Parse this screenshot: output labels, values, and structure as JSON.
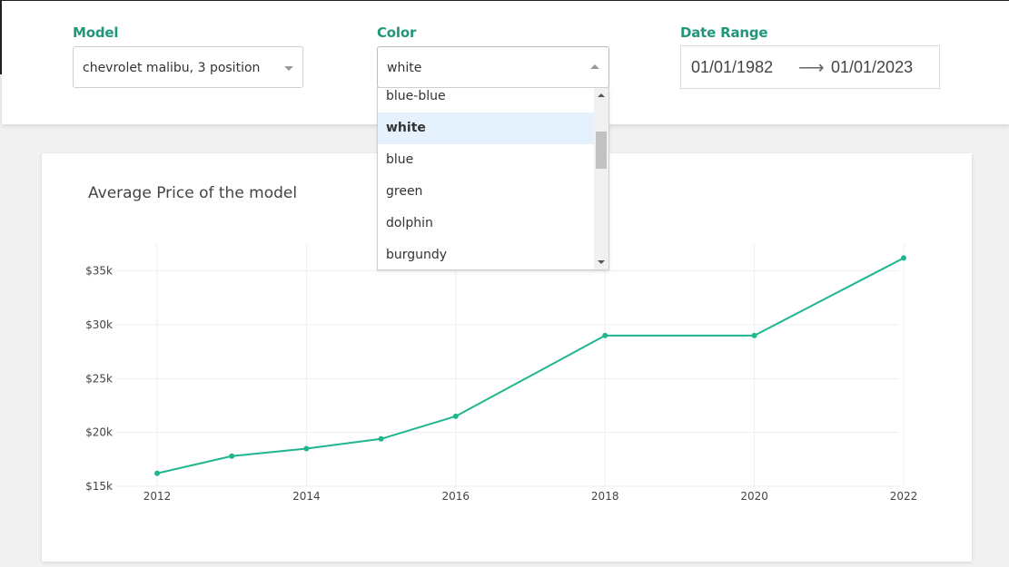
{
  "filters": {
    "model": {
      "label": "Model",
      "value": "chevrolet malibu, 3 position"
    },
    "color": {
      "label": "Color",
      "value": "white",
      "options": [
        "blue-blue",
        "white",
        "blue",
        "green",
        "dolphin",
        "burgundy"
      ],
      "selected_index": 1
    },
    "date_range": {
      "label": "Date Range",
      "start": "01/01/1982",
      "arrow": "⟶",
      "end": "01/01/2023"
    }
  },
  "chart_title": "Average Price of the model",
  "colors": {
    "accent": "#21967a",
    "line": "#1fb58f"
  },
  "chart_data": {
    "type": "line",
    "title": "Average Price of the model",
    "xlabel": "",
    "ylabel": "",
    "x": [
      2012,
      2013,
      2014,
      2015,
      2016,
      2018,
      2020,
      2022
    ],
    "y": [
      16200,
      17800,
      18500,
      19400,
      21500,
      29000,
      29000,
      36200
    ],
    "x_ticks": [
      2012,
      2014,
      2016,
      2018,
      2020,
      2022
    ],
    "y_ticks": [
      15000,
      20000,
      25000,
      30000,
      35000
    ],
    "y_tick_labels": [
      "$15k",
      "$20k",
      "$25k",
      "$30k",
      "$35k"
    ],
    "xlim": [
      2012,
      2022
    ],
    "ylim": [
      15000,
      37500
    ],
    "grid": true,
    "legend": "none"
  }
}
